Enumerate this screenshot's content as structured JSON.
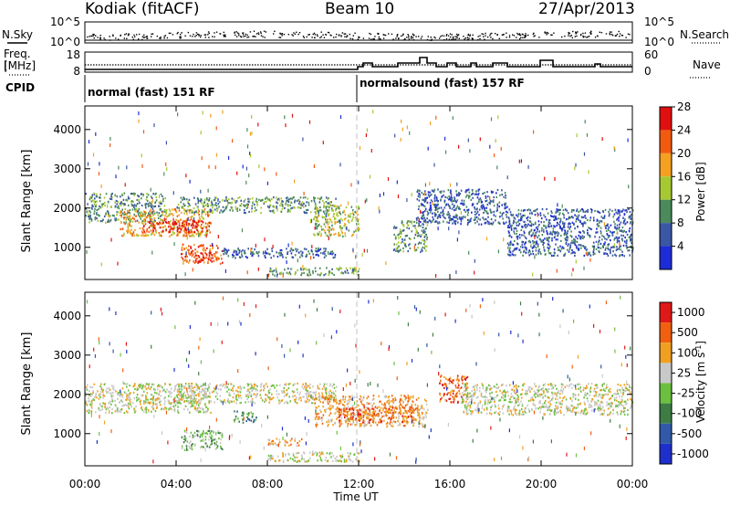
{
  "header": {
    "station": "Kodiak (fitACF)",
    "beam": "Beam 10",
    "date": "27/Apr/2013"
  },
  "status_panels": {
    "nsky_label": "N.Sky",
    "nsearch_label": "N.Search",
    "nsky_ticks": [
      "10^5",
      "10^0"
    ],
    "nsearch_ticks": [
      "10^5",
      "10^0"
    ],
    "freq_label_1": "Freq.",
    "freq_label_2": "[MHz]",
    "freq_ticks": [
      "18",
      "8"
    ],
    "nave_label": "Nave",
    "nave_ticks": [
      "60",
      "0"
    ],
    "cpid_label": "CPID",
    "cpid_segments": [
      {
        "label": "normal (fast) 151 RF",
        "start_hour": 0,
        "end_hour": 12
      },
      {
        "label": "normalsound (fast) 157 RF",
        "start_hour": 12,
        "end_hour": 24
      }
    ]
  },
  "colors": {
    "axis": "#000000",
    "frame": "#000000"
  },
  "chart_data": [
    {
      "type": "heatmap",
      "name": "power",
      "ylabel": "Slant Range [km]",
      "xlabel": "",
      "xlim": [
        0,
        24
      ],
      "ylim": [
        180,
        4600
      ],
      "yticks": [
        1000,
        2000,
        3000,
        4000
      ],
      "xticks": [
        0,
        4,
        8,
        12,
        16,
        20,
        24
      ],
      "colorbar": {
        "label": "Power [dB]",
        "ticks": [
          "4",
          "8",
          "12",
          "16",
          "20",
          "24",
          "28"
        ],
        "colors": [
          "#1d2cd6",
          "#3a56a4",
          "#4a8a5c",
          "#a6c831",
          "#f4a020",
          "#f25a10",
          "#e01010"
        ]
      },
      "echo_regions": [
        {
          "t0": 0.0,
          "t1": 3.5,
          "r0": 1650,
          "r1": 2400,
          "level": 2
        },
        {
          "t0": 1.5,
          "t1": 5.5,
          "r0": 1300,
          "r1": 2000,
          "level": 4
        },
        {
          "t0": 2.5,
          "t1": 5.5,
          "r0": 1400,
          "r1": 1700,
          "level": 6
        },
        {
          "t0": 4.0,
          "t1": 11.0,
          "r0": 1900,
          "r1": 2300,
          "level": 2
        },
        {
          "t0": 4.2,
          "t1": 6.0,
          "r0": 600,
          "r1": 1100,
          "level": 5
        },
        {
          "t0": 4.8,
          "t1": 5.6,
          "r0": 650,
          "r1": 900,
          "level": 6
        },
        {
          "t0": 8.0,
          "t1": 12.0,
          "r0": 300,
          "r1": 500,
          "level": 2
        },
        {
          "t0": 6.0,
          "t1": 11.0,
          "r0": 750,
          "r1": 1000,
          "level": 1
        },
        {
          "t0": 10.0,
          "t1": 12.0,
          "r0": 1300,
          "r1": 2100,
          "level": 3
        },
        {
          "t0": 13.5,
          "t1": 15.0,
          "r0": 900,
          "r1": 1700,
          "level": 2
        },
        {
          "t0": 14.5,
          "t1": 18.5,
          "r0": 1600,
          "r1": 2500,
          "level": 1
        },
        {
          "t0": 18.5,
          "t1": 24.0,
          "r0": 800,
          "r1": 2000,
          "level": 1
        }
      ]
    },
    {
      "type": "heatmap",
      "name": "velocity",
      "ylabel": "Slant Range [km]",
      "xlabel": "Time UT",
      "xlim": [
        0,
        24
      ],
      "ylim": [
        180,
        4600
      ],
      "yticks": [
        1000,
        2000,
        3000,
        4000
      ],
      "xticks": [
        0,
        4,
        8,
        12,
        16,
        20,
        24
      ],
      "xticklabels": [
        "00:00",
        "04:00",
        "08:00",
        "12:00",
        "16:00",
        "20:00",
        "00:00"
      ],
      "colorbar": {
        "label": "Velocity [m s-1]",
        "ticks": [
          "1000",
          "500",
          "100",
          "25",
          "-25",
          "-100",
          "-500",
          "-1000"
        ],
        "colors": [
          "#1f2fcc",
          "#3059a8",
          "#3d7d44",
          "#6cc040",
          "#c8c8c8",
          "#f0a020",
          "#f06010",
          "#e01818"
        ]
      },
      "echo_regions": [
        {
          "t0": 0.0,
          "t1": 5.5,
          "r0": 1550,
          "r1": 2300,
          "level": 4
        },
        {
          "t0": 4.0,
          "t1": 11.0,
          "r0": 1800,
          "r1": 2300,
          "level": 4
        },
        {
          "t0": 4.2,
          "t1": 6.0,
          "r0": 600,
          "r1": 1100,
          "level": 3
        },
        {
          "t0": 8.0,
          "t1": 12.0,
          "r0": 300,
          "r1": 550,
          "level": 4
        },
        {
          "t0": 8.0,
          "t1": 9.5,
          "r0": 700,
          "r1": 900,
          "level": 5
        },
        {
          "t0": 10.0,
          "t1": 15.0,
          "r0": 1200,
          "r1": 2000,
          "level": 5
        },
        {
          "t0": 11.0,
          "t1": 14.5,
          "r0": 1300,
          "r1": 1700,
          "level": 6
        },
        {
          "t0": 15.5,
          "t1": 16.8,
          "r0": 1800,
          "r1": 2500,
          "level": 6
        },
        {
          "t0": 16.5,
          "t1": 24.0,
          "r0": 1500,
          "r1": 2300,
          "level": 4
        },
        {
          "t0": 6.5,
          "t1": 7.5,
          "r0": 1300,
          "r1": 1600,
          "level": 2
        }
      ]
    }
  ]
}
